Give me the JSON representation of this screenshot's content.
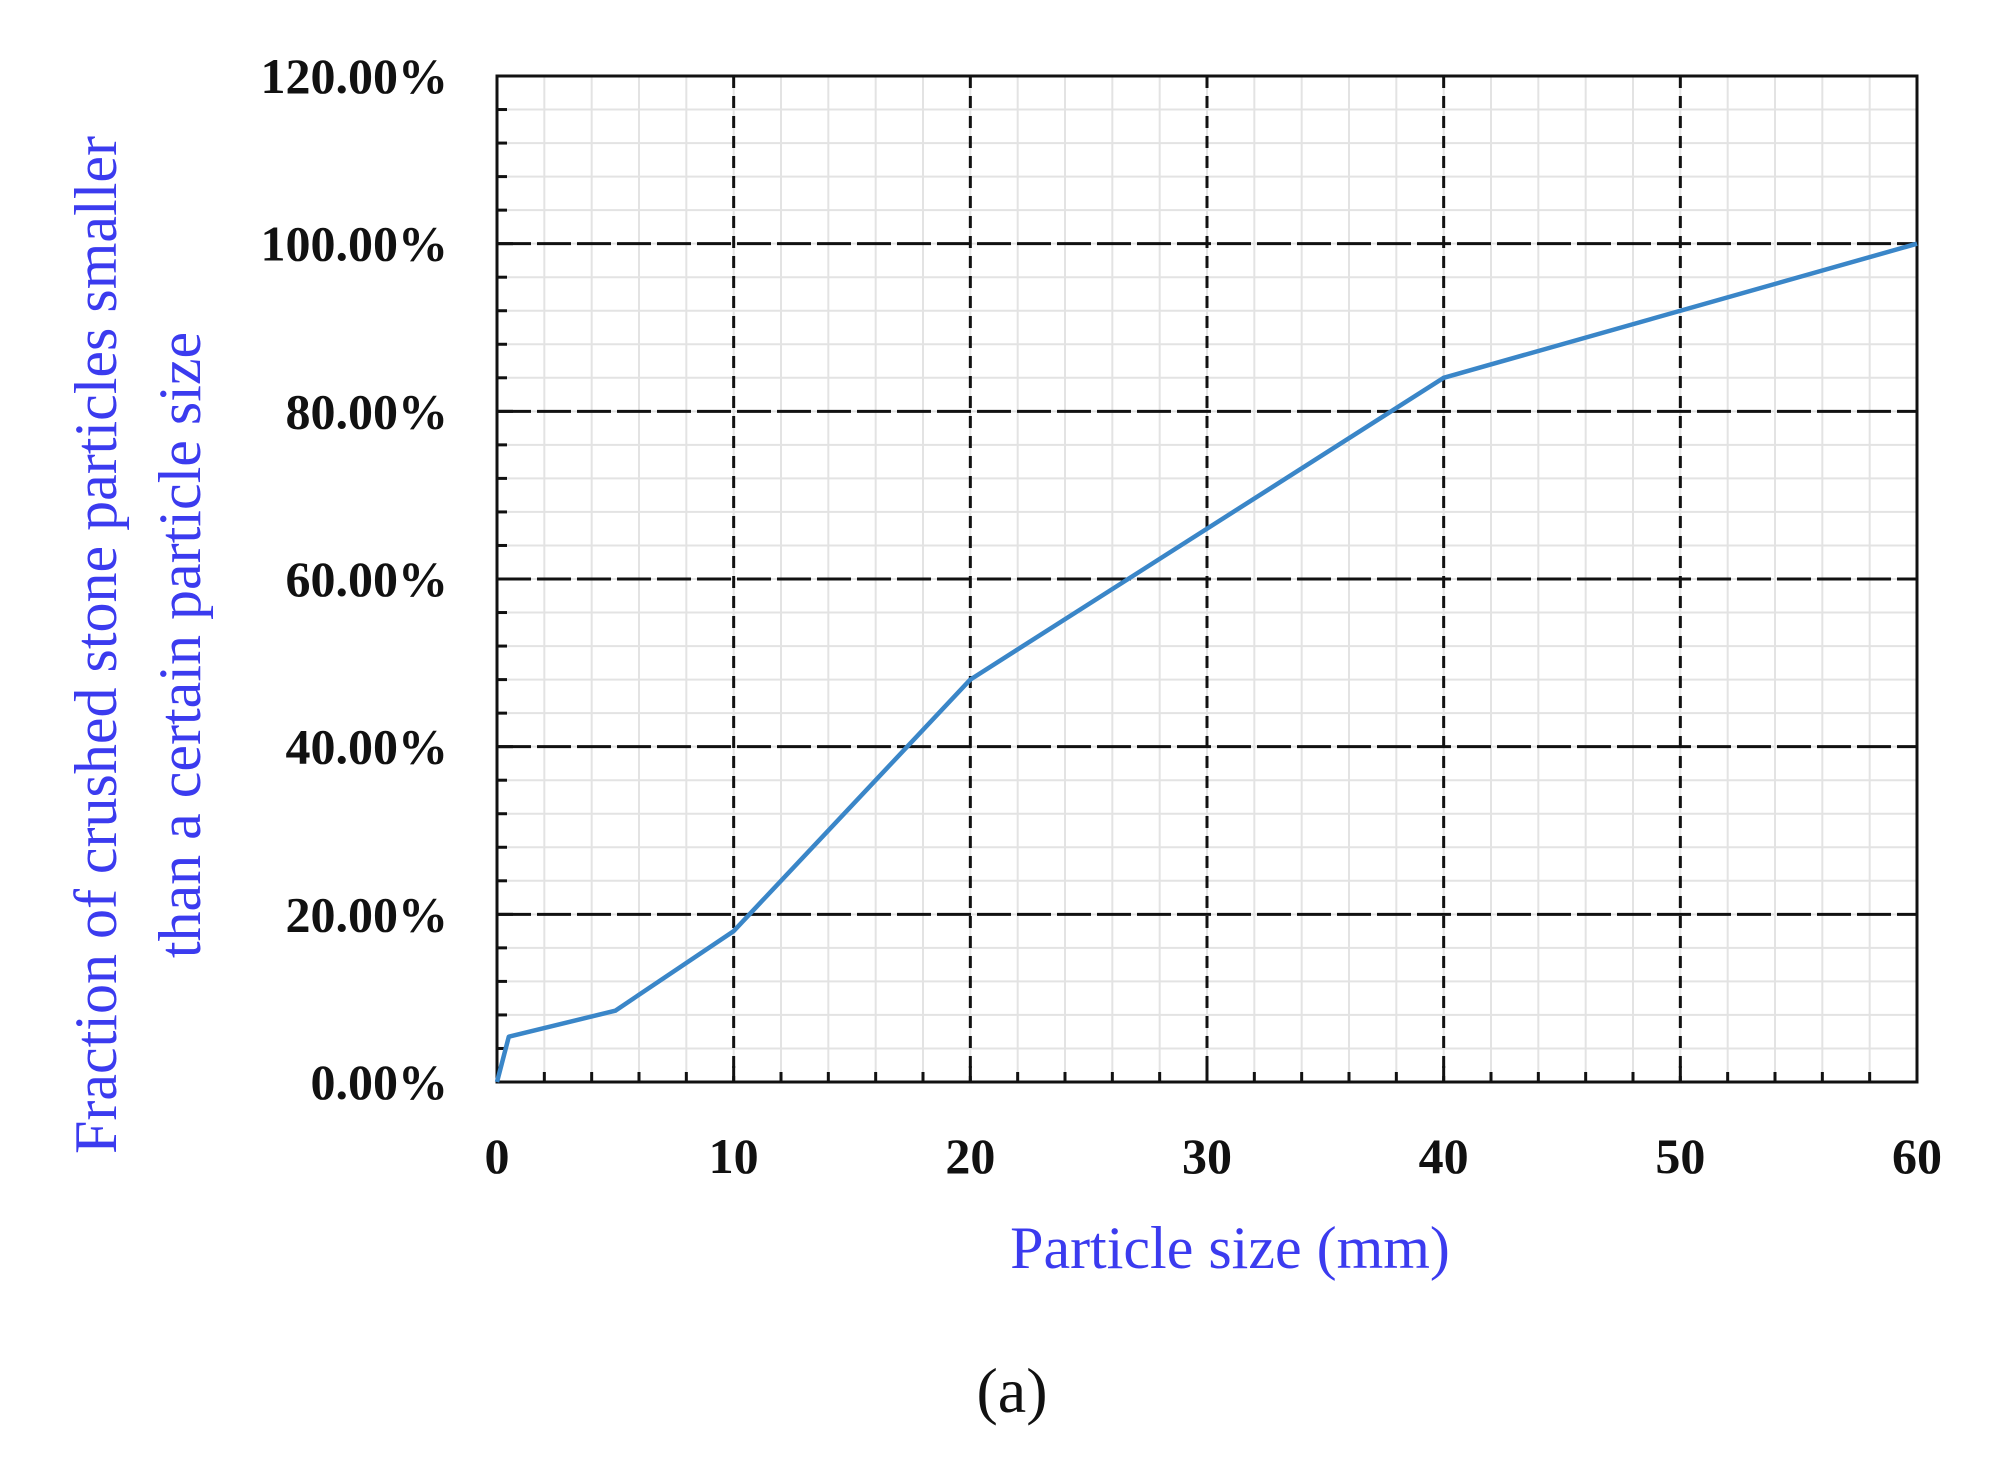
{
  "chart_data": {
    "type": "line",
    "xlabel": "Particle size (mm)",
    "ylabel_lines": [
      "Fraction of crushed stone particles smaller",
      "than a certain particle size"
    ],
    "caption": "(a)",
    "xlim": [
      0,
      60
    ],
    "ylim": [
      0,
      120
    ],
    "x_ticks": [
      0,
      10,
      20,
      30,
      40,
      50,
      60
    ],
    "x_tick_labels": [
      "0",
      "10",
      "20",
      "30",
      "40",
      "50",
      "60"
    ],
    "y_ticks": [
      0,
      20,
      40,
      60,
      80,
      100,
      120
    ],
    "y_tick_labels": [
      "0.00%",
      "20.00%",
      "40.00%",
      "60.00%",
      "80.00%",
      "100.00%",
      "120.00%"
    ],
    "grid": true,
    "series": [
      {
        "x": [
          0,
          0.5,
          5,
          10,
          20,
          40,
          60
        ],
        "y": [
          0,
          5.4,
          8.5,
          18,
          48,
          84,
          100
        ],
        "color": "#3a86c8"
      }
    ],
    "colors": {
      "line": "#3a86c8",
      "axis_title": "#3b3bef",
      "major_grid": "#111111",
      "minor_grid": "#e3e3e3",
      "tick_text": "#111111"
    }
  }
}
